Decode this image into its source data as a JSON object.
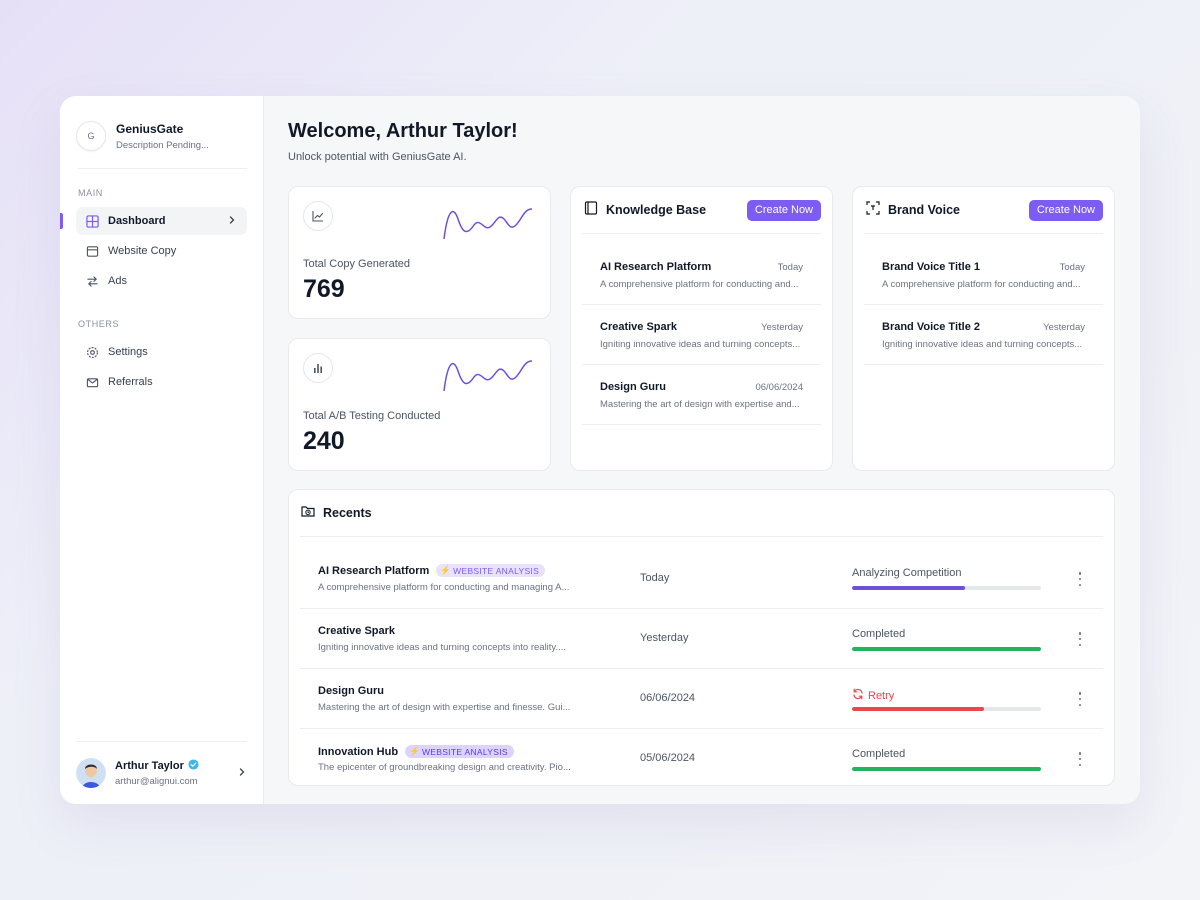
{
  "brand": {
    "logo_letter": "G",
    "name": "GeniusGate",
    "description": "Description Pending..."
  },
  "sidebar": {
    "main_label": "MAIN",
    "main_items": [
      {
        "label": "Dashboard",
        "icon": "grid-icon",
        "active": true
      },
      {
        "label": "Website Copy",
        "icon": "browser-icon"
      },
      {
        "label": "Ads",
        "icon": "arrows-swap-icon"
      }
    ],
    "others_label": "OTHERS",
    "others_items": [
      {
        "label": "Settings",
        "icon": "gear-icon"
      },
      {
        "label": "Referrals",
        "icon": "mail-icon"
      }
    ]
  },
  "user": {
    "name": "Arthur Taylor",
    "email": "arthur@alignui.com",
    "verified": true
  },
  "header": {
    "title": "Welcome, Arthur Taylor!",
    "subtitle": "Unlock potential with GeniusGate AI."
  },
  "stats": [
    {
      "label": "Total Copy Generated",
      "value": "769",
      "icon": "line-chart-icon"
    },
    {
      "label": "Total A/B Testing Conducted",
      "value": "240",
      "icon": "bar-chart-icon"
    }
  ],
  "knowledge_base": {
    "title": "Knowledge Base",
    "button": "Create Now",
    "items": [
      {
        "title": "AI Research Platform",
        "date": "Today",
        "desc": "A comprehensive platform for conducting and..."
      },
      {
        "title": "Creative Spark",
        "date": "Yesterday",
        "desc": "Igniting innovative ideas and turning concepts..."
      },
      {
        "title": "Design Guru",
        "date": "06/06/2024",
        "desc": "Mastering the art of design with expertise and..."
      }
    ]
  },
  "brand_voice": {
    "title": "Brand Voice",
    "button": "Create Now",
    "items": [
      {
        "title": "Brand Voice Title 1",
        "date": "Today",
        "desc": "A comprehensive platform for conducting and..."
      },
      {
        "title": "Brand Voice Title 2",
        "date": "Yesterday",
        "desc": "Igniting innovative ideas and turning concepts..."
      }
    ]
  },
  "recents": {
    "title": "Recents",
    "rows": [
      {
        "title": "AI Research Platform",
        "badge": "WEBSITE ANALYSIS",
        "desc": "A comprehensive platform for conducting and managing A...",
        "date": "Today",
        "status": "Analyzing Competition",
        "progress": 0.6,
        "color": "#6f4fd8"
      },
      {
        "title": "Creative Spark",
        "badge": "",
        "desc": "Igniting innovative ideas and turning concepts into reality....",
        "date": "Yesterday",
        "status": "Completed",
        "progress": 1.0,
        "color": "#22b45c"
      },
      {
        "title": "Design Guru",
        "badge": "",
        "desc": "Mastering the art of design with expertise and finesse. Gui...",
        "date": "06/06/2024",
        "status": "Retry",
        "progress": 0.7,
        "color": "#e5484d"
      },
      {
        "title": "Innovation Hub",
        "badge": "WEBSITE ANALYSIS",
        "desc": "The epicenter of groundbreaking design and creativity. Pio...",
        "date": "05/06/2024",
        "status": "Completed",
        "progress": 1.0,
        "color": "#22b45c"
      }
    ]
  },
  "colors": {
    "accent": "#7c5cf2",
    "success": "#22b45c",
    "danger": "#e5484d"
  }
}
